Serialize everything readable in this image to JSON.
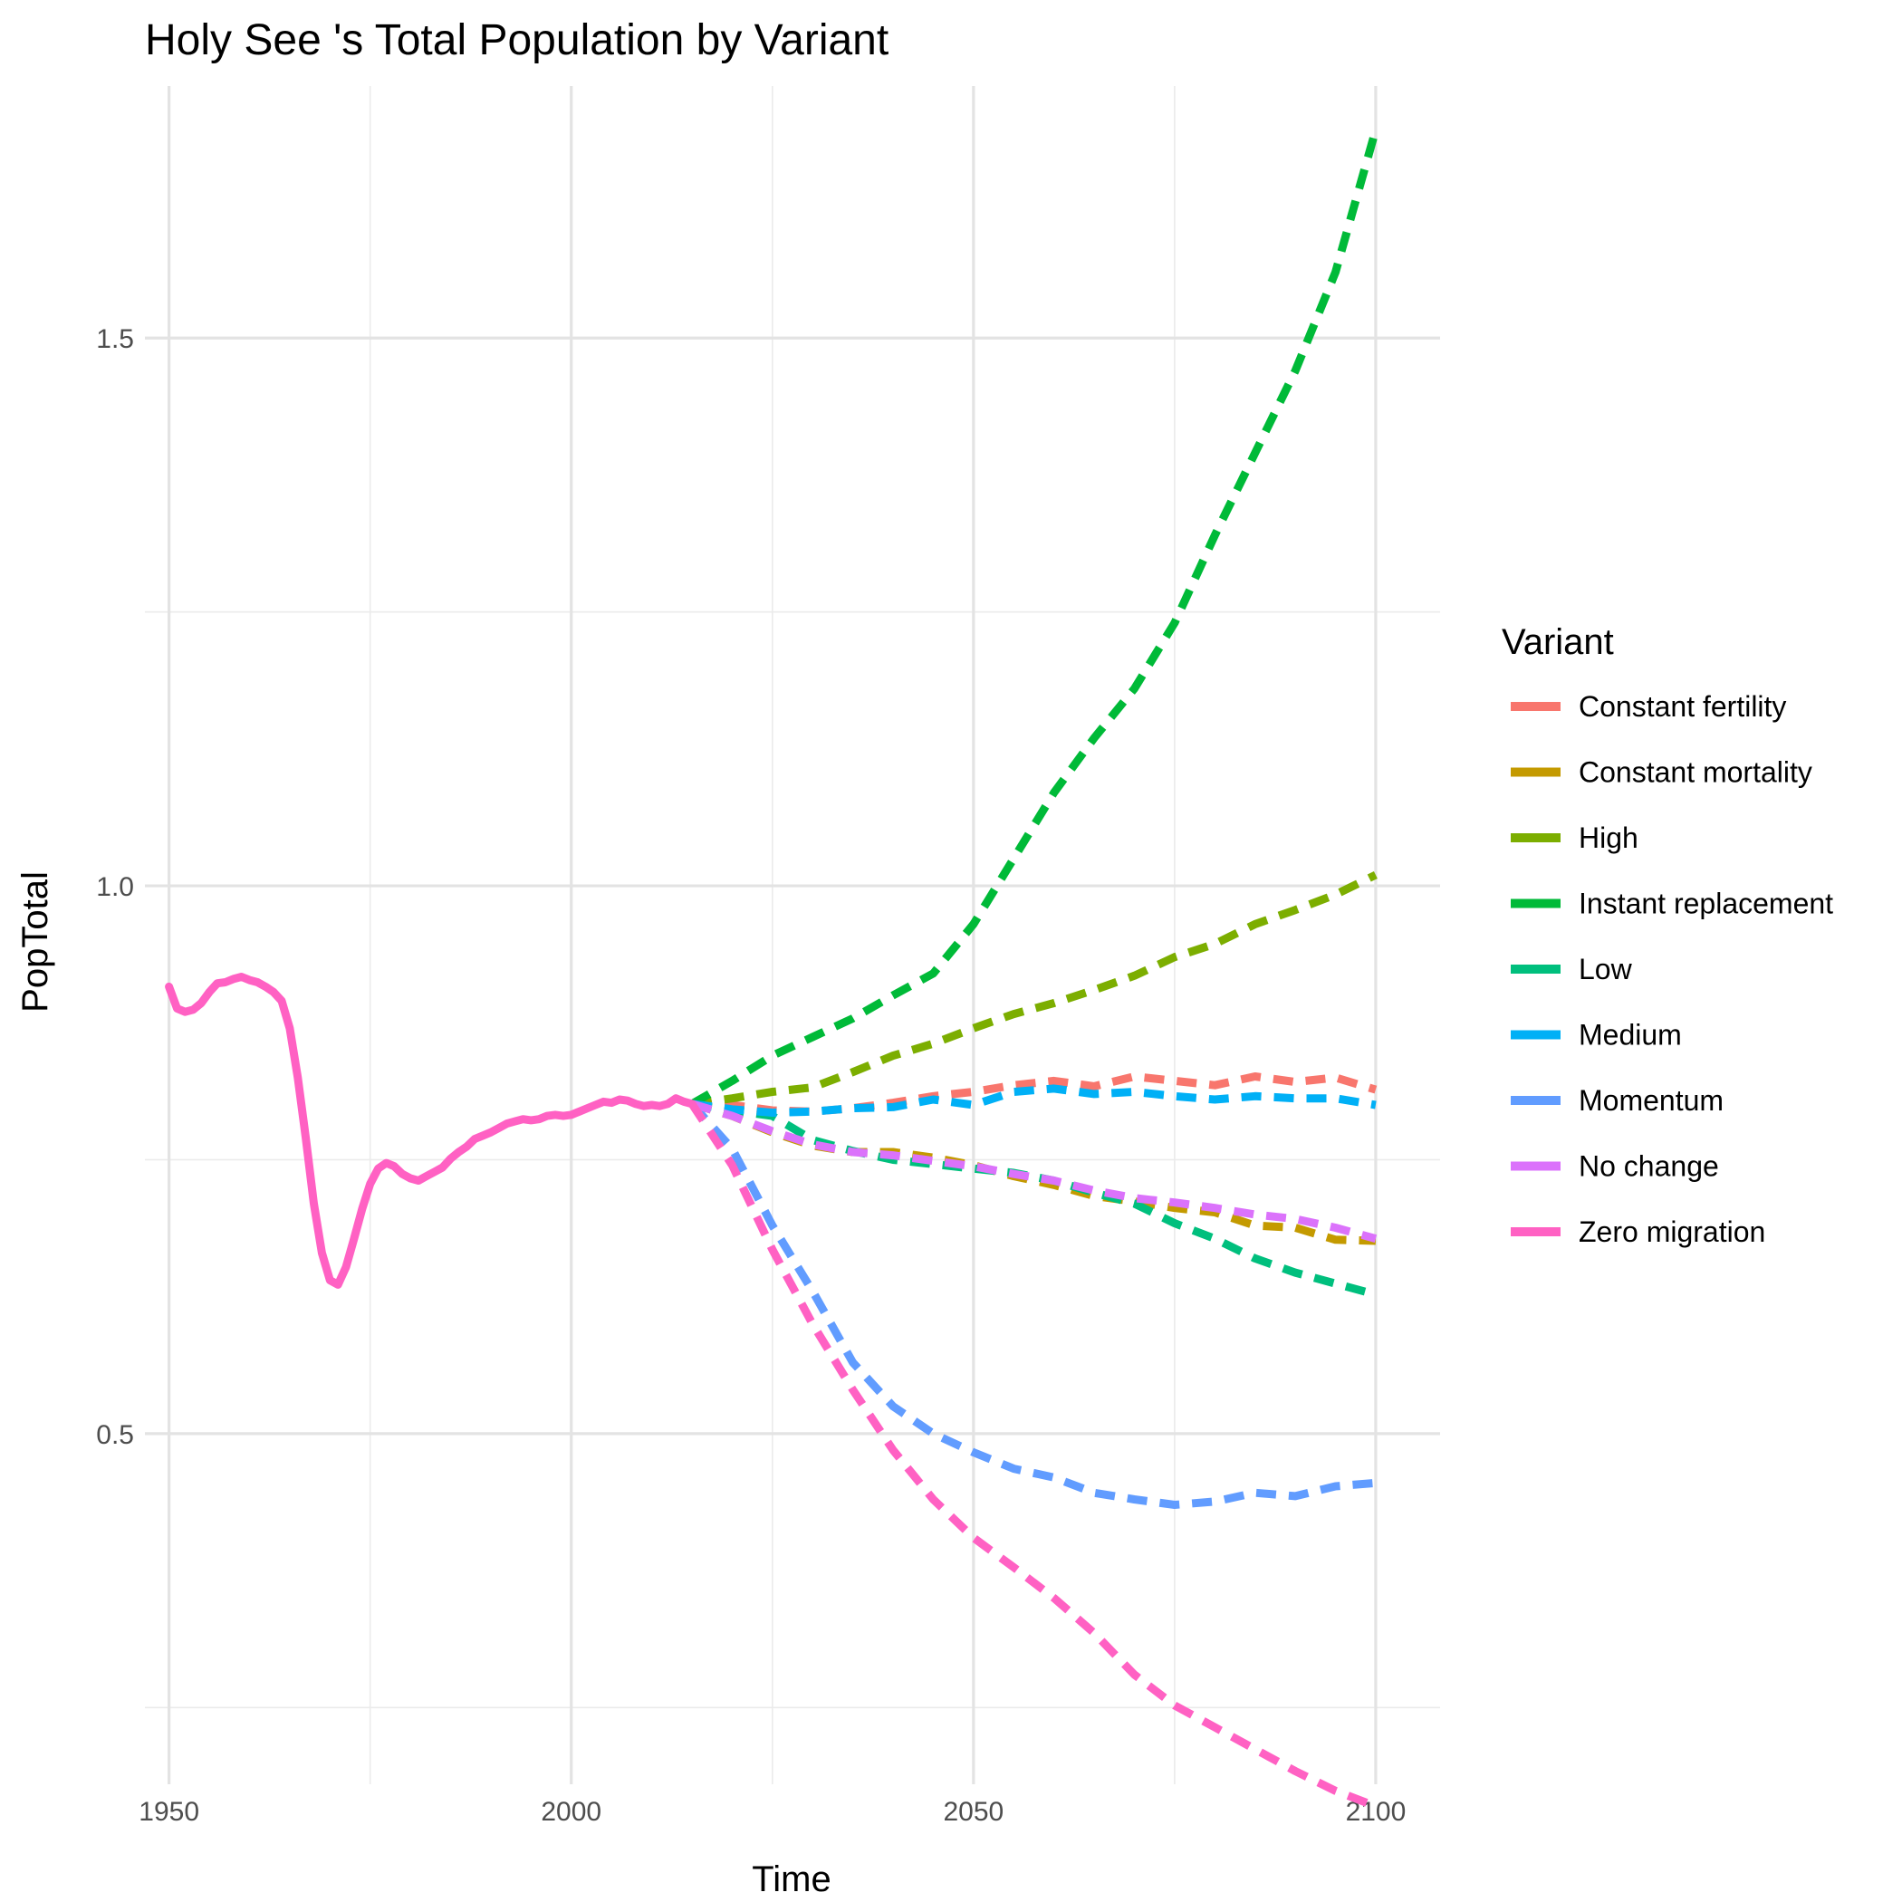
{
  "chart_data": {
    "type": "line",
    "title": "Holy See 's Total Population by Variant",
    "xlabel": "Time",
    "ylabel": "PopTotal",
    "xlim": [
      1947,
      2108
    ],
    "ylim": [
      0.18,
      1.73
    ],
    "x_ticks": [
      {
        "value": 1950,
        "label": "1950"
      },
      {
        "value": 2000,
        "label": "2000"
      },
      {
        "value": 2050,
        "label": "2050"
      },
      {
        "value": 2100,
        "label": "2100"
      }
    ],
    "y_ticks": [
      {
        "value": 0.5,
        "label": "0.5"
      },
      {
        "value": 1.0,
        "label": "1.0"
      },
      {
        "value": 1.5,
        "label": "1.5"
      }
    ],
    "x_minor": [
      1975,
      2025,
      2075
    ],
    "y_minor": [
      0.25,
      0.75,
      1.25
    ],
    "grid": true,
    "legend": {
      "title": "Variant",
      "position": "right"
    },
    "series": [
      {
        "name": "Constant fertility",
        "color": "#F8766D",
        "dashed": true,
        "points": [
          [
            2015,
            0.801
          ],
          [
            2020,
            0.8
          ],
          [
            2025,
            0.795
          ],
          [
            2030,
            0.794
          ],
          [
            2035,
            0.797
          ],
          [
            2040,
            0.802
          ],
          [
            2045,
            0.808
          ],
          [
            2050,
            0.812
          ],
          [
            2055,
            0.818
          ],
          [
            2060,
            0.822
          ],
          [
            2065,
            0.817
          ],
          [
            2070,
            0.826
          ],
          [
            2075,
            0.822
          ],
          [
            2080,
            0.818
          ],
          [
            2085,
            0.826
          ],
          [
            2090,
            0.821
          ],
          [
            2095,
            0.825
          ],
          [
            2100,
            0.814
          ]
        ]
      },
      {
        "name": "Constant mortality",
        "color": "#C49A00",
        "dashed": true,
        "points": [
          [
            2015,
            0.801
          ],
          [
            2020,
            0.79
          ],
          [
            2025,
            0.775
          ],
          [
            2030,
            0.763
          ],
          [
            2035,
            0.757
          ],
          [
            2040,
            0.757
          ],
          [
            2045,
            0.752
          ],
          [
            2050,
            0.745
          ],
          [
            2055,
            0.735
          ],
          [
            2060,
            0.727
          ],
          [
            2065,
            0.717
          ],
          [
            2070,
            0.712
          ],
          [
            2075,
            0.706
          ],
          [
            2080,
            0.702
          ],
          [
            2085,
            0.69
          ],
          [
            2090,
            0.688
          ],
          [
            2095,
            0.677
          ],
          [
            2100,
            0.676
          ]
        ]
      },
      {
        "name": "High",
        "color": "#7CAE00",
        "dashed": true,
        "points": [
          [
            2015,
            0.801
          ],
          [
            2020,
            0.806
          ],
          [
            2025,
            0.812
          ],
          [
            2030,
            0.816
          ],
          [
            2035,
            0.83
          ],
          [
            2040,
            0.845
          ],
          [
            2045,
            0.856
          ],
          [
            2050,
            0.87
          ],
          [
            2055,
            0.883
          ],
          [
            2060,
            0.893
          ],
          [
            2065,
            0.905
          ],
          [
            2070,
            0.918
          ],
          [
            2075,
            0.935
          ],
          [
            2080,
            0.947
          ],
          [
            2085,
            0.965
          ],
          [
            2090,
            0.978
          ],
          [
            2095,
            0.992
          ],
          [
            2100,
            1.01
          ]
        ]
      },
      {
        "name": "Instant replacement",
        "color": "#00BA38",
        "dashed": true,
        "points": [
          [
            2015,
            0.801
          ],
          [
            2020,
            0.822
          ],
          [
            2025,
            0.845
          ],
          [
            2030,
            0.862
          ],
          [
            2035,
            0.879
          ],
          [
            2040,
            0.9
          ],
          [
            2045,
            0.92
          ],
          [
            2050,
            0.965
          ],
          [
            2055,
            1.025
          ],
          [
            2060,
            1.085
          ],
          [
            2065,
            1.135
          ],
          [
            2070,
            1.18
          ],
          [
            2075,
            1.24
          ],
          [
            2080,
            1.32
          ],
          [
            2085,
            1.395
          ],
          [
            2090,
            1.47
          ],
          [
            2095,
            1.56
          ],
          [
            2100,
            1.69
          ]
        ]
      },
      {
        "name": "Low",
        "color": "#00BF7D",
        "dashed": true,
        "points": [
          [
            2015,
            0.801
          ],
          [
            2020,
            0.795
          ],
          [
            2025,
            0.79
          ],
          [
            2030,
            0.768
          ],
          [
            2035,
            0.758
          ],
          [
            2040,
            0.75
          ],
          [
            2045,
            0.746
          ],
          [
            2050,
            0.742
          ],
          [
            2055,
            0.738
          ],
          [
            2060,
            0.731
          ],
          [
            2065,
            0.72
          ],
          [
            2070,
            0.71
          ],
          [
            2075,
            0.692
          ],
          [
            2080,
            0.678
          ],
          [
            2085,
            0.66
          ],
          [
            2090,
            0.647
          ],
          [
            2095,
            0.637
          ],
          [
            2100,
            0.627
          ]
        ]
      },
      {
        "name": "Medium",
        "color": "#00B0F6",
        "dashed": true,
        "points": [
          [
            2015,
            0.801
          ],
          [
            2020,
            0.796
          ],
          [
            2025,
            0.793
          ],
          [
            2030,
            0.794
          ],
          [
            2035,
            0.797
          ],
          [
            2040,
            0.798
          ],
          [
            2045,
            0.805
          ],
          [
            2050,
            0.8
          ],
          [
            2055,
            0.812
          ],
          [
            2060,
            0.815
          ],
          [
            2065,
            0.81
          ],
          [
            2070,
            0.812
          ],
          [
            2075,
            0.808
          ],
          [
            2080,
            0.805
          ],
          [
            2085,
            0.808
          ],
          [
            2090,
            0.806
          ],
          [
            2095,
            0.806
          ],
          [
            2100,
            0.8
          ]
        ]
      },
      {
        "name": "Momentum",
        "color": "#619CFF",
        "dashed": true,
        "points": [
          [
            2015,
            0.801
          ],
          [
            2020,
            0.76
          ],
          [
            2025,
            0.69
          ],
          [
            2030,
            0.63
          ],
          [
            2035,
            0.565
          ],
          [
            2040,
            0.525
          ],
          [
            2045,
            0.5
          ],
          [
            2050,
            0.483
          ],
          [
            2055,
            0.468
          ],
          [
            2060,
            0.46
          ],
          [
            2065,
            0.446
          ],
          [
            2070,
            0.44
          ],
          [
            2075,
            0.435
          ],
          [
            2080,
            0.438
          ],
          [
            2085,
            0.446
          ],
          [
            2090,
            0.443
          ],
          [
            2095,
            0.452
          ],
          [
            2100,
            0.455
          ]
        ]
      },
      {
        "name": "No change",
        "color": "#DB72FB",
        "dashed": true,
        "points": [
          [
            2015,
            0.801
          ],
          [
            2020,
            0.79
          ],
          [
            2025,
            0.776
          ],
          [
            2030,
            0.764
          ],
          [
            2035,
            0.757
          ],
          [
            2040,
            0.754
          ],
          [
            2045,
            0.749
          ],
          [
            2050,
            0.744
          ],
          [
            2055,
            0.737
          ],
          [
            2060,
            0.731
          ],
          [
            2065,
            0.722
          ],
          [
            2070,
            0.715
          ],
          [
            2075,
            0.711
          ],
          [
            2080,
            0.706
          ],
          [
            2085,
            0.7
          ],
          [
            2090,
            0.696
          ],
          [
            2095,
            0.688
          ],
          [
            2100,
            0.678
          ]
        ]
      },
      {
        "name": "Zero migration",
        "color": "#FF61C3",
        "dashed": true,
        "points": [
          [
            2015,
            0.801
          ],
          [
            2020,
            0.745
          ],
          [
            2025,
            0.668
          ],
          [
            2030,
            0.6
          ],
          [
            2035,
            0.54
          ],
          [
            2040,
            0.485
          ],
          [
            2045,
            0.44
          ],
          [
            2050,
            0.405
          ],
          [
            2055,
            0.378
          ],
          [
            2060,
            0.35
          ],
          [
            2065,
            0.318
          ],
          [
            2070,
            0.28
          ],
          [
            2075,
            0.252
          ],
          [
            2080,
            0.232
          ],
          [
            2085,
            0.212
          ],
          [
            2090,
            0.192
          ],
          [
            2095,
            0.174
          ],
          [
            2100,
            0.16
          ]
        ]
      }
    ],
    "historical": {
      "name": "Zero migration",
      "color": "#FF61C3",
      "points": [
        [
          1950,
          0.908
        ],
        [
          1951,
          0.888
        ],
        [
          1952,
          0.885
        ],
        [
          1953,
          0.887
        ],
        [
          1954,
          0.893
        ],
        [
          1955,
          0.903
        ],
        [
          1956,
          0.911
        ],
        [
          1957,
          0.912
        ],
        [
          1958,
          0.915
        ],
        [
          1959,
          0.917
        ],
        [
          1960,
          0.914
        ],
        [
          1961,
          0.912
        ],
        [
          1962,
          0.908
        ],
        [
          1963,
          0.903
        ],
        [
          1964,
          0.895
        ],
        [
          1965,
          0.87
        ],
        [
          1966,
          0.825
        ],
        [
          1967,
          0.77
        ],
        [
          1968,
          0.71
        ],
        [
          1969,
          0.665
        ],
        [
          1970,
          0.64
        ],
        [
          1971,
          0.636
        ],
        [
          1972,
          0.652
        ],
        [
          1973,
          0.678
        ],
        [
          1974,
          0.705
        ],
        [
          1975,
          0.728
        ],
        [
          1976,
          0.742
        ],
        [
          1977,
          0.747
        ],
        [
          1978,
          0.744
        ],
        [
          1979,
          0.737
        ],
        [
          1980,
          0.733
        ],
        [
          1981,
          0.731
        ],
        [
          1982,
          0.735
        ],
        [
          1983,
          0.739
        ],
        [
          1984,
          0.743
        ],
        [
          1985,
          0.751
        ],
        [
          1986,
          0.757
        ],
        [
          1987,
          0.762
        ],
        [
          1988,
          0.769
        ],
        [
          1989,
          0.772
        ],
        [
          1990,
          0.775
        ],
        [
          1991,
          0.779
        ],
        [
          1992,
          0.783
        ],
        [
          1993,
          0.785
        ],
        [
          1994,
          0.787
        ],
        [
          1995,
          0.786
        ],
        [
          1996,
          0.787
        ],
        [
          1997,
          0.79
        ],
        [
          1998,
          0.791
        ],
        [
          1999,
          0.79
        ],
        [
          2000,
          0.791
        ],
        [
          2001,
          0.794
        ],
        [
          2002,
          0.797
        ],
        [
          2003,
          0.8
        ],
        [
          2004,
          0.803
        ],
        [
          2005,
          0.802
        ],
        [
          2006,
          0.805
        ],
        [
          2007,
          0.804
        ],
        [
          2008,
          0.801
        ],
        [
          2009,
          0.799
        ],
        [
          2010,
          0.8
        ],
        [
          2011,
          0.799
        ],
        [
          2012,
          0.801
        ],
        [
          2013,
          0.806
        ],
        [
          2014,
          0.803
        ],
        [
          2015,
          0.801
        ]
      ]
    }
  }
}
